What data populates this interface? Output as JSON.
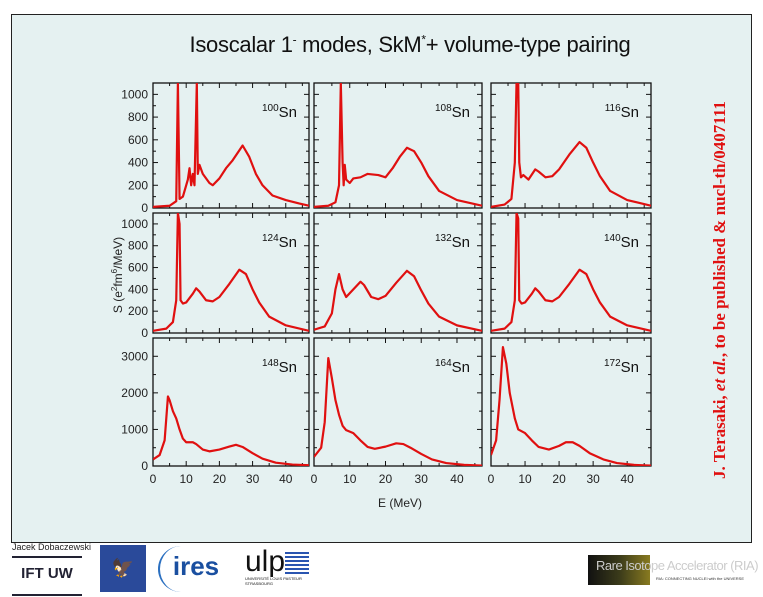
{
  "title": {
    "prefix": "Isoscalar 1",
    "sup1": "-",
    "mid": " modes, SkM",
    "sup2": "*",
    "suffix": "+ volume-type pairing"
  },
  "side_note": {
    "author": "J. Terasaki, ",
    "etal": "et al.",
    "rest": ", to be published & nucl-th/0407111"
  },
  "footer": {
    "author": "Jacek Dobaczewski",
    "logos": [
      "IFT UW",
      "Universitas Varsoviensis",
      "ires",
      "ulp",
      "Rare Isotope Accelerator (RIA)"
    ],
    "ria_tagline": "RIA: CONNECTING NUCLEI with the UNIVERSE",
    "ulp_caption": "UNIVERSITÉ LOUIS PASTEUR STRASBOURG"
  },
  "colors": {
    "curve": "#e01010",
    "background": "#e5f1f1",
    "side_note": "#e01010"
  },
  "chart_data": {
    "type": "line",
    "layout": "3x3 grid, shared axes",
    "xlabel": "E (MeV)",
    "ylabel": "S (e2fm6/MeV)",
    "ylabel_parts": {
      "pre": "S (e",
      "sup1": "2",
      "mid": "fm",
      "sup2": "6",
      "post": "/MeV)"
    },
    "xlim": [
      0,
      47
    ],
    "xticks": [
      "0",
      "10",
      "20",
      "30",
      "40"
    ],
    "rows": [
      {
        "ylim": [
          0,
          1100
        ],
        "yticks": [
          "0",
          "200",
          "400",
          "600",
          "800",
          "1000"
        ]
      },
      {
        "ylim": [
          0,
          1100
        ],
        "yticks": [
          "0",
          "200",
          "400",
          "600",
          "800",
          "1000"
        ]
      },
      {
        "ylim": [
          0,
          3500
        ],
        "yticks": [
          "0",
          "1000",
          "2000",
          "3000"
        ]
      }
    ],
    "panels": [
      {
        "mass": "100",
        "element": "Sn",
        "points": [
          [
            0,
            10
          ],
          [
            5,
            20
          ],
          [
            7,
            60
          ],
          [
            7.5,
            1100
          ],
          [
            8,
            80
          ],
          [
            9,
            100
          ],
          [
            10,
            200
          ],
          [
            10.5,
            250
          ],
          [
            11,
            350
          ],
          [
            11.5,
            200
          ],
          [
            12,
            300
          ],
          [
            12.5,
            200
          ],
          [
            13.2,
            1100
          ],
          [
            13.5,
            300
          ],
          [
            14,
            380
          ],
          [
            15,
            300
          ],
          [
            17,
            220
          ],
          [
            18,
            200
          ],
          [
            20,
            260
          ],
          [
            22,
            350
          ],
          [
            24,
            420
          ],
          [
            27,
            550
          ],
          [
            29,
            450
          ],
          [
            31,
            300
          ],
          [
            33,
            200
          ],
          [
            36,
            110
          ],
          [
            40,
            70
          ],
          [
            44,
            40
          ],
          [
            47,
            20
          ]
        ]
      },
      {
        "mass": "108",
        "element": "Sn",
        "points": [
          [
            0,
            10
          ],
          [
            4,
            20
          ],
          [
            6,
            50
          ],
          [
            7,
            200
          ],
          [
            7.5,
            1100
          ],
          [
            8,
            400
          ],
          [
            8.3,
            200
          ],
          [
            8.6,
            380
          ],
          [
            9,
            250
          ],
          [
            10,
            220
          ],
          [
            11,
            260
          ],
          [
            13,
            270
          ],
          [
            15,
            300
          ],
          [
            18,
            290
          ],
          [
            20,
            270
          ],
          [
            22,
            350
          ],
          [
            24,
            450
          ],
          [
            26,
            530
          ],
          [
            28,
            500
          ],
          [
            30,
            400
          ],
          [
            32,
            280
          ],
          [
            35,
            150
          ],
          [
            40,
            70
          ],
          [
            47,
            20
          ]
        ]
      },
      {
        "mass": "116",
        "element": "Sn",
        "points": [
          [
            0,
            10
          ],
          [
            4,
            30
          ],
          [
            6,
            80
          ],
          [
            7,
            400
          ],
          [
            7.5,
            1100
          ],
          [
            8,
            1100
          ],
          [
            8.3,
            400
          ],
          [
            8.8,
            270
          ],
          [
            9.5,
            290
          ],
          [
            11,
            250
          ],
          [
            13,
            340
          ],
          [
            14,
            320
          ],
          [
            16,
            270
          ],
          [
            18,
            280
          ],
          [
            20,
            340
          ],
          [
            23,
            470
          ],
          [
            26,
            580
          ],
          [
            28,
            530
          ],
          [
            30,
            400
          ],
          [
            32,
            280
          ],
          [
            35,
            150
          ],
          [
            40,
            70
          ],
          [
            47,
            20
          ]
        ]
      },
      {
        "mass": "124",
        "element": "Sn",
        "points": [
          [
            0,
            20
          ],
          [
            4,
            40
          ],
          [
            6,
            100
          ],
          [
            7,
            300
          ],
          [
            7.5,
            1100
          ],
          [
            8,
            1000
          ],
          [
            8.3,
            300
          ],
          [
            9,
            270
          ],
          [
            10,
            280
          ],
          [
            12,
            360
          ],
          [
            13,
            410
          ],
          [
            14,
            380
          ],
          [
            16,
            300
          ],
          [
            18,
            290
          ],
          [
            20,
            330
          ],
          [
            23,
            450
          ],
          [
            26,
            580
          ],
          [
            28,
            540
          ],
          [
            30,
            400
          ],
          [
            32,
            280
          ],
          [
            35,
            150
          ],
          [
            40,
            70
          ],
          [
            47,
            20
          ]
        ]
      },
      {
        "mass": "132",
        "element": "Sn",
        "points": [
          [
            0,
            30
          ],
          [
            3,
            60
          ],
          [
            5,
            180
          ],
          [
            6,
            400
          ],
          [
            7,
            540
          ],
          [
            8,
            400
          ],
          [
            9,
            330
          ],
          [
            11,
            400
          ],
          [
            13,
            470
          ],
          [
            14,
            440
          ],
          [
            16,
            330
          ],
          [
            18,
            310
          ],
          [
            20,
            340
          ],
          [
            23,
            460
          ],
          [
            26,
            570
          ],
          [
            28,
            520
          ],
          [
            30,
            390
          ],
          [
            32,
            270
          ],
          [
            35,
            150
          ],
          [
            40,
            70
          ],
          [
            47,
            20
          ]
        ]
      },
      {
        "mass": "140",
        "element": "Sn",
        "points": [
          [
            0,
            20
          ],
          [
            4,
            40
          ],
          [
            6,
            100
          ],
          [
            7,
            300
          ],
          [
            7.5,
            1100
          ],
          [
            8,
            1050
          ],
          [
            8.3,
            300
          ],
          [
            9,
            270
          ],
          [
            10,
            280
          ],
          [
            12,
            360
          ],
          [
            13,
            410
          ],
          [
            14,
            380
          ],
          [
            16,
            300
          ],
          [
            18,
            290
          ],
          [
            20,
            330
          ],
          [
            23,
            450
          ],
          [
            26,
            580
          ],
          [
            28,
            540
          ],
          [
            30,
            400
          ],
          [
            32,
            280
          ],
          [
            35,
            150
          ],
          [
            40,
            70
          ],
          [
            47,
            20
          ]
        ]
      },
      {
        "mass": "148",
        "element": "Sn",
        "points": [
          [
            0,
            180
          ],
          [
            2,
            300
          ],
          [
            3.5,
            700
          ],
          [
            4.5,
            1900
          ],
          [
            5,
            1800
          ],
          [
            6,
            1500
          ],
          [
            7,
            1300
          ],
          [
            8,
            1000
          ],
          [
            9,
            750
          ],
          [
            10,
            650
          ],
          [
            12,
            650
          ],
          [
            13,
            600
          ],
          [
            15,
            450
          ],
          [
            17,
            400
          ],
          [
            20,
            450
          ],
          [
            23,
            530
          ],
          [
            25,
            580
          ],
          [
            27,
            520
          ],
          [
            30,
            350
          ],
          [
            33,
            200
          ],
          [
            37,
            90
          ],
          [
            42,
            40
          ],
          [
            47,
            20
          ]
        ]
      },
      {
        "mass": "164",
        "element": "Sn",
        "points": [
          [
            0,
            250
          ],
          [
            2,
            500
          ],
          [
            3,
            1200
          ],
          [
            4,
            2950
          ],
          [
            5,
            2400
          ],
          [
            6,
            1800
          ],
          [
            7,
            1400
          ],
          [
            8,
            1100
          ],
          [
            9,
            980
          ],
          [
            11,
            900
          ],
          [
            13,
            700
          ],
          [
            15,
            520
          ],
          [
            17,
            470
          ],
          [
            20,
            530
          ],
          [
            23,
            620
          ],
          [
            25,
            600
          ],
          [
            27,
            500
          ],
          [
            30,
            330
          ],
          [
            33,
            180
          ],
          [
            37,
            80
          ],
          [
            42,
            30
          ],
          [
            47,
            10
          ]
        ]
      },
      {
        "mass": "172",
        "element": "Sn",
        "points": [
          [
            0,
            300
          ],
          [
            1.5,
            700
          ],
          [
            2.5,
            1800
          ],
          [
            3.5,
            3250
          ],
          [
            4.5,
            2800
          ],
          [
            5.5,
            2000
          ],
          [
            7,
            1300
          ],
          [
            8,
            1000
          ],
          [
            10,
            900
          ],
          [
            12,
            700
          ],
          [
            14,
            520
          ],
          [
            17,
            450
          ],
          [
            20,
            550
          ],
          [
            22,
            650
          ],
          [
            24,
            650
          ],
          [
            26,
            550
          ],
          [
            29,
            350
          ],
          [
            33,
            180
          ],
          [
            37,
            80
          ],
          [
            42,
            30
          ],
          [
            47,
            10
          ]
        ]
      }
    ]
  }
}
